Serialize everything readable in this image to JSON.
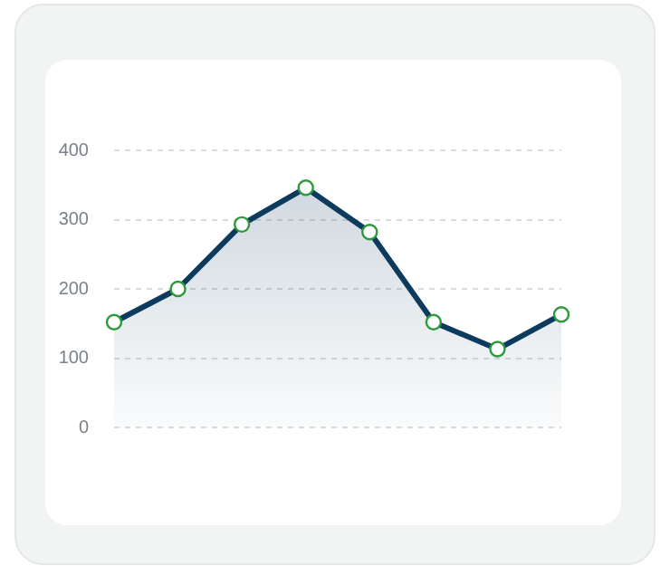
{
  "chart_data": {
    "type": "area",
    "categories": [
      null,
      null,
      null,
      null,
      null,
      null,
      null,
      null
    ],
    "series": [
      {
        "color": "#0d3b5e",
        "values": [
          152,
          200,
          293,
          346,
          282,
          152,
          113,
          163
        ]
      }
    ],
    "ylim": [
      0,
      400
    ],
    "yticks": [
      0,
      100,
      200,
      300,
      400
    ],
    "grid": "y",
    "legend": false,
    "tick_labels": "y",
    "marker": "circle",
    "line_style": "solid"
  }
}
